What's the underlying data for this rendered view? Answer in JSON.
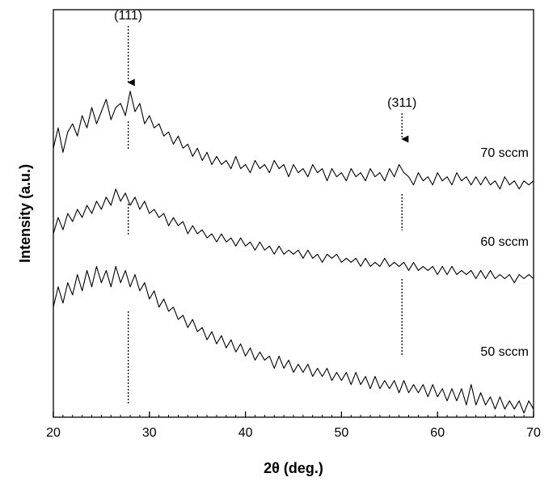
{
  "chart_data": {
    "type": "line",
    "x_label": "2θ (deg.)",
    "y_label": "Intensity (a.u.)",
    "xlim": [
      20,
      70
    ],
    "xticks": [
      20,
      30,
      40,
      50,
      60,
      70
    ],
    "ylim": [
      0,
      100
    ],
    "annotations": [
      {
        "text": "(111)",
        "x": 27.8
      },
      {
        "text": "(311)",
        "x": 56.3
      }
    ],
    "x": [
      20,
      20.5,
      21,
      21.5,
      22,
      22.5,
      23,
      23.5,
      24,
      24.5,
      25,
      25.5,
      26,
      26.5,
      27,
      27.5,
      28,
      28.5,
      29,
      29.5,
      30,
      30.5,
      31,
      31.5,
      32,
      32.5,
      33,
      33.5,
      34,
      34.5,
      35,
      35.5,
      36,
      36.5,
      37,
      37.5,
      38,
      38.5,
      39,
      39.5,
      40,
      40.5,
      41,
      41.5,
      42,
      42.5,
      43,
      43.5,
      44,
      44.5,
      45,
      45.5,
      46,
      46.5,
      47,
      47.5,
      48,
      48.5,
      49,
      49.5,
      50,
      50.5,
      51,
      51.5,
      52,
      52.5,
      53,
      53.5,
      54,
      54.5,
      55,
      55.5,
      56,
      56.5,
      57,
      57.5,
      58,
      58.5,
      59,
      59.5,
      60,
      60.5,
      61,
      61.5,
      62,
      62.5,
      63,
      63.5,
      64,
      64.5,
      65,
      65.5,
      66,
      66.5,
      67,
      67.5,
      68,
      68.5,
      69,
      69.5,
      70
    ],
    "series": [
      {
        "name": "70 sccm",
        "color": "#000000",
        "values": [
          66,
          71,
          65,
          70,
          72,
          69,
          74,
          71,
          76,
          72,
          75,
          78,
          73,
          76,
          77,
          74,
          80,
          75,
          77,
          72,
          74,
          71,
          72,
          69,
          70,
          67,
          69,
          66,
          67,
          64,
          66,
          63,
          65,
          62,
          64,
          62,
          63,
          61,
          64,
          61,
          62,
          60,
          63,
          61,
          62,
          60,
          63,
          61,
          62,
          59,
          62,
          60,
          61,
          59,
          62,
          60,
          61,
          58,
          61,
          59,
          60,
          58,
          61,
          59,
          60,
          58,
          61,
          59,
          60,
          58,
          61,
          59,
          62,
          60,
          59,
          57,
          60,
          58,
          59,
          57,
          60,
          58,
          59,
          57,
          60,
          58,
          59,
          57,
          59,
          57,
          59,
          57,
          58,
          56,
          59,
          57,
          58,
          56,
          58,
          57,
          58
        ]
      },
      {
        "name": "60 sccm",
        "color": "#000000",
        "values": [
          45,
          49,
          46,
          50,
          48,
          51,
          49,
          52,
          50,
          53,
          51,
          54,
          52,
          56,
          53,
          55,
          52,
          54,
          51,
          53,
          50,
          51,
          49,
          50,
          47,
          49,
          47,
          48,
          45,
          47,
          45,
          46,
          44,
          45,
          43,
          45,
          43,
          44,
          42,
          44,
          42,
          43,
          41,
          43,
          41,
          42,
          40,
          42,
          40,
          41,
          40,
          41,
          39,
          41,
          39,
          40,
          38,
          40,
          39,
          40,
          38,
          39,
          38,
          39,
          37,
          39,
          37,
          38,
          37,
          39,
          37,
          38,
          37,
          38,
          36,
          38,
          36,
          37,
          36,
          37,
          35,
          37,
          35,
          37,
          35,
          36,
          35,
          36,
          34,
          36,
          34,
          36,
          34,
          35,
          34,
          35,
          33,
          35,
          34,
          35,
          34
        ]
      },
      {
        "name": "50 sccm",
        "color": "#000000",
        "values": [
          27,
          32,
          28,
          33,
          30,
          35,
          31,
          36,
          32,
          37,
          33,
          36,
          32,
          37,
          33,
          36,
          32,
          35,
          31,
          33,
          29,
          31,
          27,
          29,
          26,
          27,
          24,
          25,
          22,
          24,
          21,
          22,
          19,
          21,
          18,
          20,
          17,
          19,
          16,
          18,
          15,
          17,
          14,
          16,
          14,
          15,
          12,
          15,
          12,
          14,
          11,
          13,
          11,
          13,
          10,
          12,
          10,
          12,
          9,
          11,
          9,
          11,
          8,
          11,
          8,
          10,
          7,
          10,
          7,
          9,
          7,
          9,
          6,
          9,
          6,
          8,
          6,
          8,
          5,
          8,
          5,
          7,
          4,
          7,
          4,
          7,
          3,
          8,
          3,
          6,
          3,
          5,
          2,
          5,
          2,
          4,
          2,
          4,
          1,
          4,
          2
        ]
      }
    ]
  }
}
